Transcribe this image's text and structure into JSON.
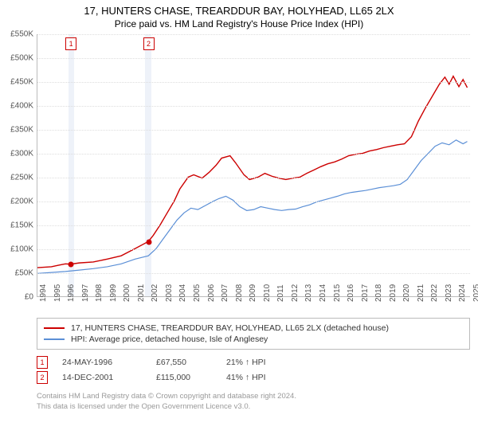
{
  "title": {
    "line1": "17, HUNTERS CHASE, TREARDDUR BAY, HOLYHEAD, LL65 2LX",
    "line2": "Price paid vs. HM Land Registry's House Price Index (HPI)",
    "fontsize_line1": 13,
    "fontsize_line2": 12,
    "color": "#000000"
  },
  "chart": {
    "type": "line",
    "background_color": "#ffffff",
    "grid_color": "#dddddd",
    "axis_color": "#bbbbbb",
    "vband_color": "#eef2f9",
    "x": {
      "min": 1994,
      "max": 2025,
      "ticks": [
        1994,
        1995,
        1996,
        1997,
        1998,
        1999,
        2000,
        2001,
        2002,
        2003,
        2004,
        2005,
        2006,
        2007,
        2008,
        2009,
        2010,
        2011,
        2012,
        2013,
        2014,
        2015,
        2016,
        2017,
        2018,
        2019,
        2020,
        2021,
        2022,
        2023,
        2024,
        2025
      ],
      "label_fontsize": 10,
      "label_color": "#555555",
      "rotation": -90
    },
    "y": {
      "min": 0,
      "max": 550,
      "ticks": [
        0,
        50,
        100,
        150,
        200,
        250,
        300,
        350,
        400,
        450,
        500,
        550
      ],
      "tick_labels": [
        "£0",
        "£50K",
        "£100K",
        "£150K",
        "£200K",
        "£250K",
        "£300K",
        "£350K",
        "£400K",
        "£450K",
        "£500K",
        "£550K"
      ],
      "label_fontsize": 10,
      "label_color": "#555555"
    },
    "vbands": [
      {
        "from": 1996.2,
        "to": 1996.6
      },
      {
        "from": 2001.7,
        "to": 2002.15
      }
    ],
    "markers": [
      {
        "id": "1",
        "x": 1996.4,
        "price": 67.55,
        "border_color": "#cc0000",
        "dot_color": "#cc0000"
      },
      {
        "id": "2",
        "x": 2001.95,
        "price": 115,
        "border_color": "#cc0000",
        "dot_color": "#cc0000"
      }
    ],
    "series": [
      {
        "name": "property",
        "label": "17, HUNTERS CHASE, TREARDDUR BAY, HOLYHEAD, LL65 2LX (detached house)",
        "color": "#cc0000",
        "line_width": 1.4,
        "data": [
          [
            1994,
            60
          ],
          [
            1995,
            62
          ],
          [
            1995.5,
            65
          ],
          [
            1996,
            68
          ],
          [
            1996.4,
            67.55
          ],
          [
            1997,
            70
          ],
          [
            1998,
            72
          ],
          [
            1999,
            78
          ],
          [
            2000,
            85
          ],
          [
            2001,
            100
          ],
          [
            2001.95,
            115
          ],
          [
            2002.3,
            128
          ],
          [
            2002.8,
            150
          ],
          [
            2003.2,
            170
          ],
          [
            2003.8,
            200
          ],
          [
            2004.2,
            225
          ],
          [
            2004.8,
            250
          ],
          [
            2005.2,
            255
          ],
          [
            2005.8,
            248
          ],
          [
            2006.3,
            260
          ],
          [
            2006.8,
            275
          ],
          [
            2007.2,
            290
          ],
          [
            2007.8,
            295
          ],
          [
            2008.2,
            280
          ],
          [
            2008.8,
            255
          ],
          [
            2009.2,
            245
          ],
          [
            2009.8,
            250
          ],
          [
            2010.3,
            258
          ],
          [
            2010.8,
            252
          ],
          [
            2011.3,
            248
          ],
          [
            2011.8,
            245
          ],
          [
            2012.3,
            248
          ],
          [
            2012.8,
            250
          ],
          [
            2013.3,
            258
          ],
          [
            2013.8,
            265
          ],
          [
            2014.3,
            272
          ],
          [
            2014.8,
            278
          ],
          [
            2015.3,
            282
          ],
          [
            2015.8,
            288
          ],
          [
            2016.3,
            295
          ],
          [
            2016.8,
            298
          ],
          [
            2017.3,
            300
          ],
          [
            2017.8,
            305
          ],
          [
            2018.3,
            308
          ],
          [
            2018.8,
            312
          ],
          [
            2019.3,
            315
          ],
          [
            2019.8,
            318
          ],
          [
            2020.3,
            320
          ],
          [
            2020.8,
            335
          ],
          [
            2021.3,
            368
          ],
          [
            2021.8,
            395
          ],
          [
            2022.3,
            420
          ],
          [
            2022.8,
            445
          ],
          [
            2023.2,
            460
          ],
          [
            2023.5,
            445
          ],
          [
            2023.8,
            462
          ],
          [
            2024.2,
            440
          ],
          [
            2024.5,
            455
          ],
          [
            2024.8,
            438
          ]
        ]
      },
      {
        "name": "hpi",
        "label": "HPI: Average price, detached house, Isle of Anglesey",
        "color": "#5b8fd6",
        "line_width": 1.2,
        "data": [
          [
            1994,
            48
          ],
          [
            1995,
            50
          ],
          [
            1996,
            52
          ],
          [
            1997,
            55
          ],
          [
            1998,
            58
          ],
          [
            1999,
            62
          ],
          [
            2000,
            68
          ],
          [
            2001,
            78
          ],
          [
            2001.95,
            85
          ],
          [
            2002.5,
            100
          ],
          [
            2003,
            120
          ],
          [
            2003.5,
            140
          ],
          [
            2004,
            160
          ],
          [
            2004.5,
            175
          ],
          [
            2005,
            185
          ],
          [
            2005.5,
            182
          ],
          [
            2006,
            190
          ],
          [
            2006.5,
            198
          ],
          [
            2007,
            205
          ],
          [
            2007.5,
            210
          ],
          [
            2008,
            202
          ],
          [
            2008.5,
            188
          ],
          [
            2009,
            180
          ],
          [
            2009.5,
            182
          ],
          [
            2010,
            188
          ],
          [
            2010.5,
            185
          ],
          [
            2011,
            182
          ],
          [
            2011.5,
            180
          ],
          [
            2012,
            182
          ],
          [
            2012.5,
            183
          ],
          [
            2013,
            188
          ],
          [
            2013.5,
            192
          ],
          [
            2014,
            198
          ],
          [
            2014.5,
            202
          ],
          [
            2015,
            206
          ],
          [
            2015.5,
            210
          ],
          [
            2016,
            215
          ],
          [
            2016.5,
            218
          ],
          [
            2017,
            220
          ],
          [
            2017.5,
            222
          ],
          [
            2018,
            225
          ],
          [
            2018.5,
            228
          ],
          [
            2019,
            230
          ],
          [
            2019.5,
            232
          ],
          [
            2020,
            235
          ],
          [
            2020.5,
            245
          ],
          [
            2021,
            265
          ],
          [
            2021.5,
            285
          ],
          [
            2022,
            300
          ],
          [
            2022.5,
            315
          ],
          [
            2023,
            322
          ],
          [
            2023.5,
            318
          ],
          [
            2024,
            328
          ],
          [
            2024.5,
            320
          ],
          [
            2024.8,
            325
          ]
        ]
      }
    ]
  },
  "legend": {
    "border_color": "#bbbbbb",
    "fontsize": 10.5,
    "items": [
      {
        "series": "property"
      },
      {
        "series": "hpi"
      }
    ]
  },
  "events": [
    {
      "id": "1",
      "date": "24-MAY-1996",
      "price": "£67,550",
      "delta": "21% ↑ HPI",
      "border_color": "#cc0000"
    },
    {
      "id": "2",
      "date": "14-DEC-2001",
      "price": "£115,000",
      "delta": "41% ↑ HPI",
      "border_color": "#cc0000"
    }
  ],
  "footnote": {
    "line1": "Contains HM Land Registry data © Crown copyright and database right 2024.",
    "line2": "This data is licensed under the Open Government Licence v3.0.",
    "color": "#999999",
    "fontsize": 9.5
  }
}
